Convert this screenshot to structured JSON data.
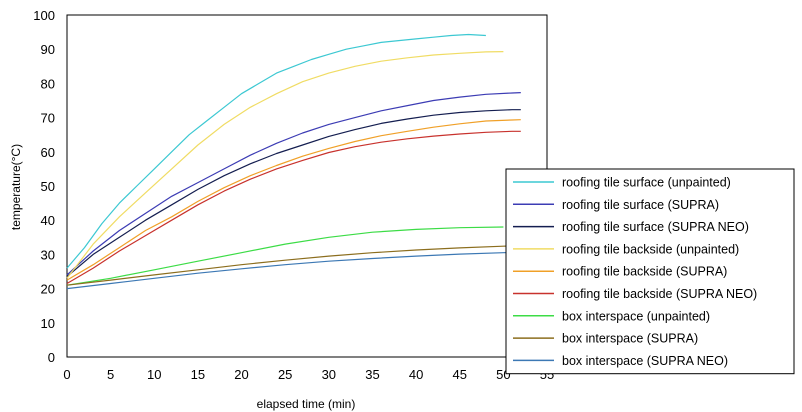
{
  "chart_data": {
    "type": "line",
    "title": "",
    "xlabel": "elapsed time (min)",
    "ylabel": "temperature(°C)",
    "xlim": [
      0,
      55
    ],
    "ylim": [
      0,
      100
    ],
    "x_ticks": [
      "0",
      "5",
      "10",
      "15",
      "20",
      "25",
      "30",
      "35",
      "40",
      "45",
      "50",
      "55"
    ],
    "y_ticks": [
      "0",
      "10",
      "20",
      "30",
      "40",
      "50",
      "60",
      "70",
      "80",
      "90",
      "100"
    ],
    "grid": "dashed, both axes",
    "legend_position": "right, overlapping lower-right of plot",
    "series": [
      {
        "name": "roofing tile surface (unpainted)",
        "color": "#3cc8d2",
        "x": [
          0,
          2,
          4,
          6,
          8,
          10,
          12,
          14,
          16,
          18,
          20,
          22,
          24,
          26,
          28,
          30,
          32,
          34,
          36,
          38,
          40,
          42,
          44,
          46,
          48
        ],
        "y": [
          26,
          32,
          39,
          45,
          50,
          55,
          60,
          65,
          69,
          73,
          77,
          80,
          83,
          85,
          87,
          88.5,
          90,
          91,
          92,
          92.5,
          93,
          93.5,
          94,
          94.3,
          94
        ]
      },
      {
        "name": "roofing tile surface (SUPRA)",
        "color": "#3c3cb4",
        "x": [
          0,
          3,
          6,
          9,
          12,
          15,
          18,
          21,
          24,
          27,
          30,
          33,
          36,
          39,
          42,
          45,
          48,
          51,
          52
        ],
        "y": [
          24,
          31,
          37,
          42,
          47,
          51,
          55,
          59,
          62.5,
          65.5,
          68,
          70,
          72,
          73.5,
          75,
          76,
          76.8,
          77.2,
          77.3
        ]
      },
      {
        "name": "roofing tile surface (SUPRA NEO)",
        "color": "#141e50",
        "x": [
          0,
          3,
          6,
          9,
          12,
          15,
          18,
          21,
          24,
          27,
          30,
          33,
          36,
          39,
          42,
          45,
          48,
          51,
          52
        ],
        "y": [
          23.5,
          30,
          35,
          40,
          44.5,
          49,
          53,
          56.5,
          59.5,
          62,
          64.5,
          66.5,
          68.3,
          69.6,
          70.7,
          71.5,
          72,
          72.3,
          72.3
        ]
      },
      {
        "name": "roofing tile backside (unpainted)",
        "color": "#f0dc64",
        "x": [
          0,
          3,
          6,
          9,
          12,
          15,
          18,
          21,
          24,
          27,
          30,
          33,
          36,
          39,
          42,
          45,
          48,
          50
        ],
        "y": [
          23,
          33,
          41,
          48,
          55,
          62,
          68,
          73,
          77,
          80.5,
          83,
          85,
          86.5,
          87.5,
          88.3,
          88.8,
          89.2,
          89.3
        ]
      },
      {
        "name": "roofing tile backside (SUPRA)",
        "color": "#f0a028",
        "x": [
          0,
          3,
          6,
          9,
          12,
          15,
          18,
          21,
          24,
          27,
          30,
          33,
          36,
          39,
          42,
          45,
          48,
          51,
          52
        ],
        "y": [
          22.5,
          27,
          32,
          37,
          41,
          45.5,
          49.5,
          53,
          56,
          58.7,
          61,
          63,
          64.7,
          66,
          67.2,
          68.2,
          69,
          69.3,
          69.4
        ]
      },
      {
        "name": "roofing tile backside (SUPRA NEO)",
        "color": "#c8322d",
        "x": [
          0,
          3,
          6,
          9,
          12,
          15,
          18,
          21,
          24,
          27,
          30,
          33,
          36,
          39,
          42,
          45,
          48,
          51,
          52
        ],
        "y": [
          21.5,
          26,
          31,
          35.5,
          40,
          44.5,
          48.5,
          52,
          55,
          57.5,
          59.8,
          61.5,
          62.8,
          63.8,
          64.6,
          65.2,
          65.7,
          66,
          66
        ]
      },
      {
        "name": "box interspace (unpainted)",
        "color": "#3cdc46",
        "x": [
          0,
          5,
          10,
          15,
          20,
          25,
          30,
          35,
          40,
          45,
          50
        ],
        "y": [
          21,
          23,
          25.5,
          28,
          30.5,
          33,
          35,
          36.5,
          37.3,
          37.8,
          38
        ]
      },
      {
        "name": "box interspace (SUPRA)",
        "color": "#8c6e1e",
        "x": [
          0,
          5,
          10,
          15,
          20,
          25,
          30,
          35,
          40,
          45,
          50,
          52
        ],
        "y": [
          21,
          22.5,
          24,
          25.5,
          27,
          28.3,
          29.5,
          30.5,
          31.3,
          31.9,
          32.4,
          32.6
        ]
      },
      {
        "name": "box interspace (SUPRA NEO)",
        "color": "#3c78b4",
        "x": [
          0,
          5,
          10,
          15,
          20,
          25,
          30,
          35,
          40,
          45,
          50,
          52
        ],
        "y": [
          20,
          21.5,
          23,
          24.5,
          25.8,
          27,
          28,
          28.8,
          29.5,
          30.1,
          30.5,
          30.6
        ]
      }
    ]
  }
}
